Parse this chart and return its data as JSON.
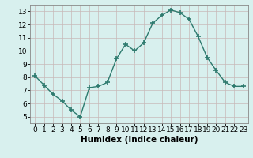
{
  "x": [
    0,
    1,
    2,
    3,
    4,
    5,
    6,
    7,
    8,
    9,
    10,
    11,
    12,
    13,
    14,
    15,
    16,
    17,
    18,
    19,
    20,
    21,
    22,
    23
  ],
  "y": [
    8.1,
    7.4,
    6.7,
    6.2,
    5.5,
    5.0,
    7.2,
    7.3,
    7.6,
    9.4,
    10.5,
    10.0,
    10.6,
    12.1,
    12.7,
    13.1,
    12.9,
    12.4,
    11.1,
    9.5,
    8.5,
    7.6,
    7.3,
    7.3
  ],
  "line_color": "#2d7a6e",
  "marker": "+",
  "marker_size": 4,
  "marker_lw": 1.2,
  "bg_color": "#d8f0ee",
  "grid_color": "#c8b8b8",
  "xlabel": "Humidex (Indice chaleur)",
  "xlabel_fontsize": 7.5,
  "xlim": [
    -0.5,
    23.5
  ],
  "ylim": [
    4.5,
    13.5
  ],
  "yticks": [
    5,
    6,
    7,
    8,
    9,
    10,
    11,
    12,
    13
  ],
  "xticks": [
    0,
    1,
    2,
    3,
    4,
    5,
    6,
    7,
    8,
    9,
    10,
    11,
    12,
    13,
    14,
    15,
    16,
    17,
    18,
    19,
    20,
    21,
    22,
    23
  ],
  "tick_fontsize": 6.5,
  "line_width": 1.0
}
